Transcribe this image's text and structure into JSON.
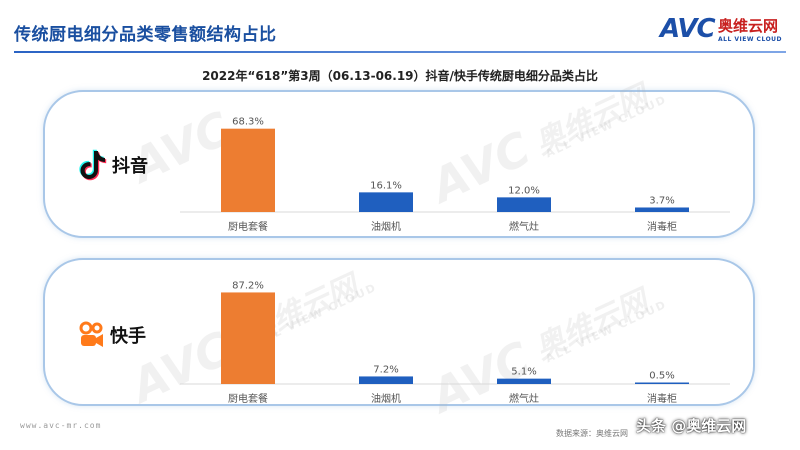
{
  "page": {
    "title": "传统厨电细分品类零售额结构占比",
    "logo": {
      "mark": "AVC",
      "name_cn": "奥维云网",
      "name_en": "ALL VIEW CLOUD"
    },
    "watermark": {
      "mark": "AVC",
      "name_cn": "奥维云网",
      "name_en": "ALL VIEW CLOUD"
    },
    "footer_url": "www.avc-mr.com",
    "footer_source": "数据来源：奥维云网",
    "footer_credit": "头条 @奥维云网"
  },
  "chart_data": [
    {
      "type": "bar",
      "title": "2022年“618”第3周（06.13-06.19）抖音/快手传统厨电细分品类占比",
      "platform": "抖音",
      "categories": [
        "厨电套餐",
        "油烟机",
        "燃气灶",
        "消毒柜"
      ],
      "values": [
        68.3,
        16.1,
        12.0,
        3.7
      ],
      "value_labels": [
        "68.3%",
        "16.1%",
        "12.0%",
        "3.7%"
      ],
      "colors": [
        "#ed7d31",
        "#1f5fbf",
        "#1f5fbf",
        "#1f5fbf"
      ],
      "ylim": [
        0,
        100
      ]
    },
    {
      "type": "bar",
      "platform": "快手",
      "categories": [
        "厨电套餐",
        "油烟机",
        "燃气灶",
        "消毒柜"
      ],
      "values": [
        87.2,
        7.2,
        5.1,
        0.5
      ],
      "value_labels": [
        "87.2%",
        "7.2%",
        "5.1%",
        "0.5%"
      ],
      "colors": [
        "#ed7d31",
        "#1f5fbf",
        "#1f5fbf",
        "#1f5fbf"
      ],
      "ylim": [
        0,
        100
      ]
    }
  ]
}
